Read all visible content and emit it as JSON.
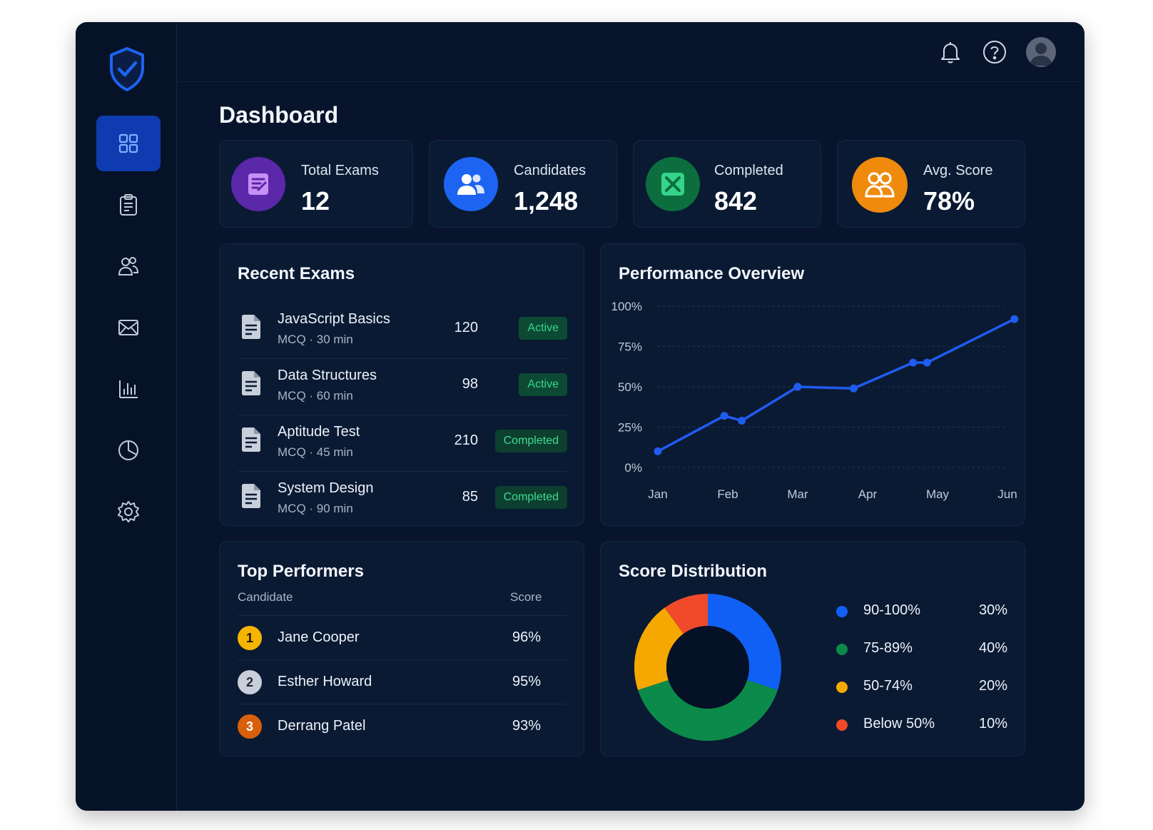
{
  "header": {
    "page_title": "Dashboard",
    "icons": [
      "bell-icon",
      "help-icon",
      "avatar"
    ]
  },
  "sidebar": {
    "items": [
      {
        "name": "dashboard",
        "icon": "grid-icon",
        "active": true
      },
      {
        "name": "exams",
        "icon": "clipboard-icon",
        "active": false
      },
      {
        "name": "candidates",
        "icon": "users-icon",
        "active": false
      },
      {
        "name": "messages",
        "icon": "mail-icon",
        "active": false
      },
      {
        "name": "reports",
        "icon": "bar-chart-icon",
        "active": false
      },
      {
        "name": "analytics",
        "icon": "pie-chart-icon",
        "active": false
      },
      {
        "name": "settings",
        "icon": "gear-icon",
        "active": false
      }
    ]
  },
  "stats": [
    {
      "label": "Total Exams",
      "value": "12",
      "color": "#6a2fb8",
      "icon": "exam-icon"
    },
    {
      "label": "Candidates",
      "value": "1,248",
      "color": "#1d64f2",
      "icon": "users-icon"
    },
    {
      "label": "Completed",
      "value": "842",
      "color": "#0c7a45",
      "icon": "check-sheet-icon"
    },
    {
      "label": "Avg. Score",
      "value": "78%",
      "color": "#f08a0c",
      "icon": "people-icon"
    }
  ],
  "recent_exams": {
    "title": "Recent Exams",
    "rows": [
      {
        "name": "JavaScript Basics",
        "meta": "MCQ · 30 min",
        "count": "120",
        "status": "Active"
      },
      {
        "name": "Data Structures",
        "meta": "MCQ · 60 min",
        "count": "98",
        "status": "Active"
      },
      {
        "name": "Aptitude Test",
        "meta": "MCQ · 45 min",
        "count": "210",
        "status": "Completed"
      },
      {
        "name": "System Design",
        "meta": "MCQ · 90 min",
        "count": "85",
        "status": "Completed"
      }
    ]
  },
  "performance": {
    "title": "Performance Overview"
  },
  "top_performers": {
    "title": "Top Performers",
    "col_candidate": "Candidate",
    "col_score": "Score",
    "rows": [
      {
        "rank": "1",
        "name": "Jane Cooper",
        "score": "96%",
        "color": "#f5b400"
      },
      {
        "rank": "2",
        "name": "Esther Howard",
        "score": "95%",
        "color": "#c9cfda"
      },
      {
        "rank": "3",
        "name": "Derrang Patel",
        "score": "93%",
        "color": "#d8600c"
      }
    ]
  },
  "score_distribution": {
    "title": "Score Distribution",
    "items": [
      {
        "label": "90-100%",
        "pct": "30%",
        "value": 30,
        "color": "#1160f5"
      },
      {
        "label": "75-89%",
        "pct": "40%",
        "value": 40,
        "color": "#0c8a4a"
      },
      {
        "label": "50-74%",
        "pct": "20%",
        "value": 20,
        "color": "#f5a800"
      },
      {
        "label": "Below 50%",
        "pct": "10%",
        "value": 10,
        "color": "#f04a2a"
      }
    ]
  },
  "chart_data": {
    "type": "line",
    "title": "Performance Overview",
    "categories": [
      "Jan",
      "Feb",
      "Mar",
      "Apr",
      "May",
      "Jun"
    ],
    "x": [
      0,
      0.95,
      1.2,
      2.0,
      2.8,
      3.65,
      3.85,
      5.1
    ],
    "series": [
      {
        "values": [
          10,
          32,
          29,
          50,
          49,
          65,
          65,
          92
        ]
      }
    ],
    "yticks": [
      "0%",
      "25%",
      "50%",
      "75%",
      "100%"
    ],
    "ylim": [
      0,
      100
    ],
    "color": "#1f5cf0",
    "grid": true
  }
}
